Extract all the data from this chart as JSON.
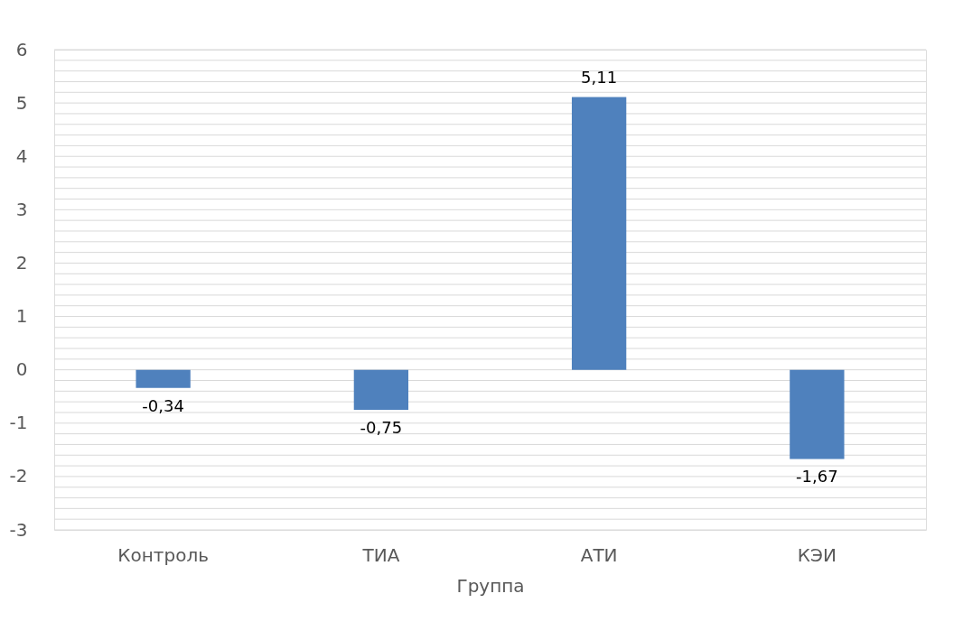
{
  "chart_data": {
    "type": "bar",
    "xlabel": "Группа",
    "categories": [
      "Контроль",
      "ТИА",
      "АТИ",
      "КЭИ"
    ],
    "values": [
      -0.34,
      -0.75,
      5.11,
      -1.67
    ],
    "value_labels": [
      "-0,34",
      "-0,75",
      "5,11",
      "-1,67"
    ],
    "color": "#4f81bd",
    "ylim": [
      -3,
      6
    ],
    "yticks": [
      -3,
      {
        "value": -2.8,
        "label": null
      },
      {
        "value": -2.6,
        "label": null
      },
      {
        "value": -2.4,
        "label": null
      },
      {
        "value": -2.2,
        "label": null
      },
      -2,
      {
        "value": -1.8,
        "label": null
      },
      {
        "value": -1.6,
        "label": null
      },
      {
        "value": -1.4,
        "label": null
      },
      {
        "value": -1.2,
        "label": null
      },
      -1,
      {
        "value": -0.8,
        "label": null
      },
      {
        "value": -0.6,
        "label": null
      },
      {
        "value": -0.4,
        "label": null
      },
      {
        "value": -0.2,
        "label": null
      },
      0,
      {
        "value": 0.2,
        "label": null
      },
      {
        "value": 0.4,
        "label": null
      },
      {
        "value": 0.6,
        "label": null
      },
      {
        "value": 0.8,
        "label": null
      },
      1,
      {
        "value": 1.2,
        "label": null
      },
      {
        "value": 1.4,
        "label": null
      },
      {
        "value": 1.6,
        "label": null
      },
      {
        "value": 1.8,
        "label": null
      },
      2,
      {
        "value": 2.2,
        "label": null
      },
      {
        "value": 2.4,
        "label": null
      },
      {
        "value": 2.6,
        "label": null
      },
      {
        "value": 2.8,
        "label": null
      },
      3,
      {
        "value": 3.2,
        "label": null
      },
      {
        "value": 3.4,
        "label": null
      },
      {
        "value": 3.6,
        "label": null
      },
      {
        "value": 3.8,
        "label": null
      },
      4,
      {
        "value": 4.2,
        "label": null
      },
      {
        "value": 4.4,
        "label": null
      },
      {
        "value": 4.6,
        "label": null
      },
      {
        "value": 4.8,
        "label": null
      },
      5,
      {
        "value": 5.2,
        "label": null
      },
      {
        "value": 5.4,
        "label": null
      },
      {
        "value": 5.6,
        "label": null
      },
      {
        "value": 5.8,
        "label": null
      },
      6
    ],
    "grid": "y"
  }
}
